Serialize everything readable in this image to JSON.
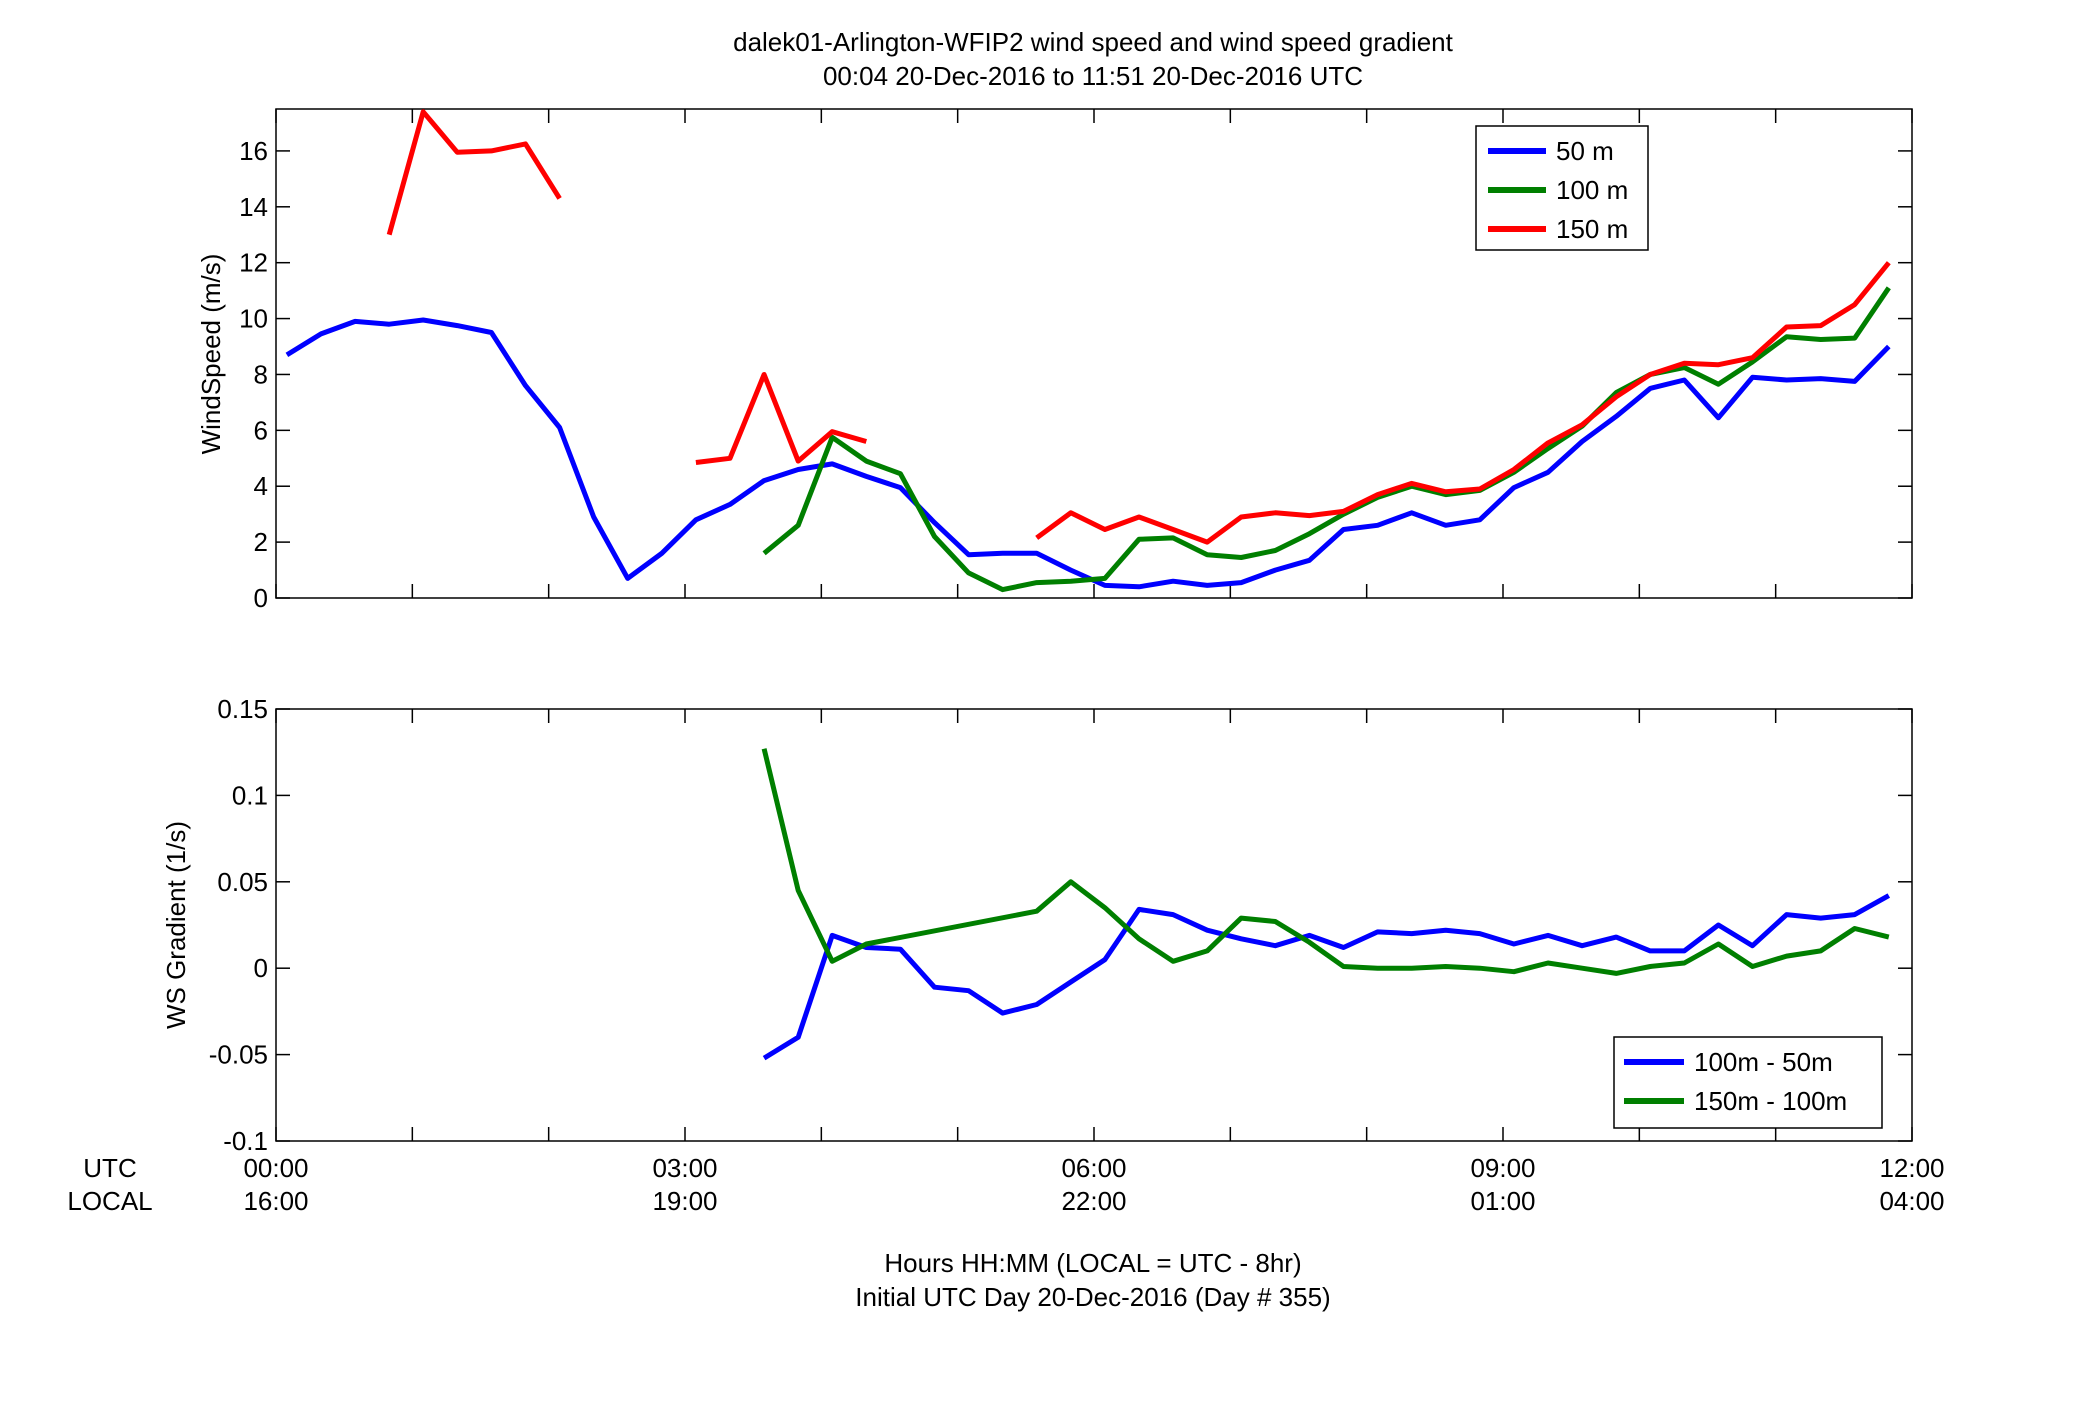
{
  "titles": {
    "line1": "dalek01-Arlington-WFIP2  wind speed and wind speed gradient",
    "line2": "00:04 20-Dec-2016 to 11:51 20-Dec-2016  UTC"
  },
  "xaxis": {
    "utc_row_label": "UTC",
    "local_row_label": "LOCAL",
    "utc_ticks": [
      "00:00",
      "03:00",
      "06:00",
      "09:00",
      "12:00"
    ],
    "local_ticks": [
      "16:00",
      "19:00",
      "22:00",
      "01:00",
      "04:00"
    ],
    "label_line1": "Hours HH:MM  (LOCAL = UTC - 8hr)",
    "label_line2": "Initial UTC Day 20-Dec-2016 (Day # 355)"
  },
  "colors": {
    "blue": "#0000ff",
    "green": "#007f00",
    "red": "#ff0000"
  },
  "chart_data": [
    {
      "type": "line",
      "ylabel": "WindSpeed (m/s)",
      "xlim": [
        0,
        12
      ],
      "ylim": [
        0,
        17.5
      ],
      "yticks": [
        0,
        2,
        4,
        6,
        8,
        10,
        12,
        14,
        16
      ],
      "ytick_labels": [
        "0",
        "2",
        "4",
        "6",
        "8",
        "10",
        "12",
        "14",
        "16"
      ],
      "legend_position": "top-right",
      "series": [
        {
          "name": "50 m",
          "color": "#0000ff",
          "x": [
            0.08,
            0.33,
            0.58,
            0.83,
            1.08,
            1.33,
            1.58,
            1.83,
            2.08,
            2.33,
            2.58,
            2.83,
            3.08,
            3.33,
            3.58,
            3.83,
            4.08,
            4.33,
            4.58,
            4.83,
            5.08,
            5.33,
            5.58,
            5.83,
            6.08,
            6.33,
            6.58,
            6.83,
            7.08,
            7.33,
            7.58,
            7.83,
            8.08,
            8.33,
            8.58,
            8.83,
            9.08,
            9.33,
            9.58,
            9.83,
            10.08,
            10.33,
            10.58,
            10.83,
            11.08,
            11.33,
            11.58,
            11.83
          ],
          "y": [
            8.7,
            9.45,
            9.9,
            9.8,
            9.95,
            9.75,
            9.5,
            7.6,
            6.1,
            2.9,
            0.7,
            1.6,
            2.8,
            3.35,
            4.2,
            4.6,
            4.8,
            4.35,
            3.95,
            2.7,
            1.55,
            1.6,
            1.6,
            1.0,
            0.45,
            0.4,
            0.6,
            0.45,
            0.55,
            1.0,
            1.35,
            2.45,
            2.6,
            3.05,
            2.6,
            2.8,
            3.95,
            4.5,
            5.6,
            6.5,
            7.5,
            7.8,
            6.45,
            7.9,
            7.8,
            7.85,
            7.75,
            9.0
          ]
        },
        {
          "name": "100 m",
          "color": "#007f00",
          "x": [
            3.58,
            3.83,
            4.08,
            4.33,
            4.58,
            4.83,
            5.08,
            5.33,
            5.58,
            5.83,
            6.08,
            6.33,
            6.58,
            6.83,
            7.08,
            7.33,
            7.58,
            7.83,
            8.08,
            8.33,
            8.58,
            8.83,
            9.08,
            9.33,
            9.58,
            9.83,
            10.08,
            10.33,
            10.58,
            10.83,
            11.08,
            11.33,
            11.58,
            11.83
          ],
          "y": [
            1.6,
            2.6,
            5.75,
            4.9,
            4.45,
            2.2,
            0.9,
            0.3,
            0.55,
            0.6,
            0.7,
            2.1,
            2.15,
            1.55,
            1.45,
            1.7,
            2.3,
            3.0,
            3.6,
            4.0,
            3.7,
            3.85,
            4.5,
            5.35,
            6.15,
            7.35,
            8.0,
            8.25,
            7.65,
            8.45,
            9.35,
            9.25,
            9.3,
            11.1
          ]
        },
        {
          "name": "150 m",
          "color": "#ff0000",
          "segments": [
            {
              "x": [
                0.83,
                1.08,
                1.33,
                1.58,
                1.83,
                2.08
              ],
              "y": [
                13.0,
                17.4,
                15.95,
                16.0,
                16.25,
                14.3
              ]
            },
            {
              "x": [
                3.08,
                3.33,
                3.58,
                3.83,
                4.08,
                4.33
              ],
              "y": [
                4.85,
                5.0,
                8.0,
                4.9,
                5.95,
                5.6
              ]
            },
            {
              "x": [
                5.58,
                5.83,
                6.08,
                6.33,
                6.58,
                6.83,
                7.08,
                7.33,
                7.58,
                7.83,
                8.08,
                8.33,
                8.58,
                8.83,
                9.08,
                9.33,
                9.58,
                9.83,
                10.08,
                10.33,
                10.58,
                10.83,
                11.08,
                11.33,
                11.58,
                11.83
              ],
              "y": [
                2.15,
                3.05,
                2.45,
                2.9,
                2.45,
                2.0,
                2.9,
                3.05,
                2.95,
                3.1,
                3.7,
                4.1,
                3.8,
                3.9,
                4.6,
                5.55,
                6.2,
                7.2,
                8.0,
                8.4,
                8.35,
                8.6,
                9.7,
                9.75,
                10.5,
                12.0
              ]
            }
          ]
        }
      ]
    },
    {
      "type": "line",
      "ylabel": "WS Gradient (1/s)",
      "xlim": [
        0,
        12
      ],
      "ylim": [
        -0.1,
        0.15
      ],
      "yticks": [
        -0.1,
        -0.05,
        0,
        0.05,
        0.1,
        0.15
      ],
      "ytick_labels": [
        "-0.1",
        "-0.05",
        "0",
        "0.05",
        "0.1",
        "0.15"
      ],
      "legend_position": "bottom-right",
      "series": [
        {
          "name": "100m - 50m",
          "color": "#0000ff",
          "x": [
            3.58,
            3.83,
            4.08,
            4.33,
            4.58,
            4.83,
            5.08,
            5.33,
            5.58,
            5.83,
            6.08,
            6.33,
            6.58,
            6.83,
            7.08,
            7.33,
            7.58,
            7.83,
            8.08,
            8.33,
            8.58,
            8.83,
            9.08,
            9.33,
            9.58,
            9.83,
            10.08,
            10.33,
            10.58,
            10.83,
            11.08,
            11.33,
            11.58,
            11.83
          ],
          "y": [
            -0.052,
            -0.04,
            0.019,
            0.012,
            0.011,
            -0.011,
            -0.013,
            -0.026,
            -0.021,
            -0.008,
            0.005,
            0.034,
            0.031,
            0.022,
            0.017,
            0.013,
            0.019,
            0.012,
            0.021,
            0.02,
            0.022,
            0.02,
            0.014,
            0.019,
            0.013,
            0.018,
            0.01,
            0.01,
            0.025,
            0.013,
            0.031,
            0.029,
            0.031,
            0.042
          ]
        },
        {
          "name": "150m - 100m",
          "color": "#007f00",
          "x": [
            3.58,
            3.83,
            4.08,
            4.33,
            5.58,
            5.83,
            6.08,
            6.33,
            6.58,
            6.83,
            7.08,
            7.33,
            7.58,
            7.83,
            8.08,
            8.33,
            8.58,
            8.83,
            9.08,
            9.33,
            9.58,
            9.83,
            10.08,
            10.33,
            10.58,
            10.83,
            11.08,
            11.33,
            11.58,
            11.83
          ],
          "y": [
            0.127,
            0.045,
            0.004,
            0.014,
            0.033,
            0.05,
            0.035,
            0.017,
            0.004,
            0.01,
            0.029,
            0.027,
            0.015,
            0.001,
            0.0,
            0.0,
            0.001,
            0.0,
            -0.002,
            0.003,
            0.0,
            -0.003,
            0.001,
            0.003,
            0.014,
            0.001,
            0.007,
            0.01,
            0.023,
            0.018
          ]
        }
      ]
    }
  ]
}
